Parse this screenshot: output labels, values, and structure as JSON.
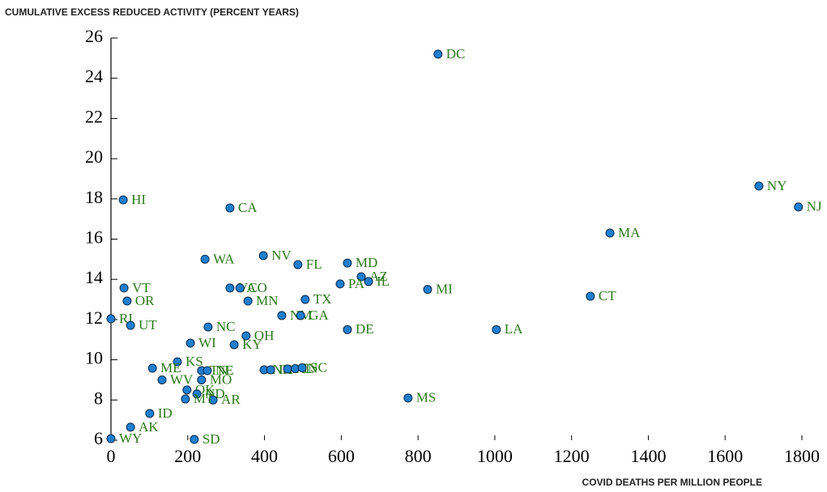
{
  "chart_data": {
    "type": "scatter",
    "title": "CUMULATIVE EXCESS REDUCED ACTIVITY (PERCENT YEARS)",
    "x_label": "COVID DEATHS PER MILLION PEOPLE",
    "labels": [
      "DC",
      "NY",
      "NJ",
      "MA",
      "CT",
      "LA",
      "MI",
      "MS",
      "HI",
      "CA",
      "WA",
      "NV",
      "FL",
      "MD",
      "AZ",
      "IL",
      "PA",
      "TX",
      "VA",
      "CO",
      "MN",
      "NM",
      "NC",
      "GA",
      "DE",
      "OH",
      "KY",
      "WI",
      "VT",
      "OR",
      "RI",
      "UT",
      "KS",
      "ME",
      "TN",
      "NE",
      "NH",
      "IA",
      "AL",
      "IN",
      "SC",
      "WV",
      "MO",
      "OK",
      "ND",
      "AR",
      "ID",
      "MT",
      "AK",
      "WY",
      "SD"
    ],
    "x": [
      852,
      1688,
      1791,
      1300,
      1249,
      1004,
      825,
      774,
      32,
      310,
      245,
      397,
      487,
      616,
      652,
      671,
      597,
      506,
      310,
      336,
      357,
      445,
      253,
      494,
      616,
      352,
      321,
      207,
      34,
      42,
      0,
      51,
      173,
      108,
      236,
      251,
      399,
      416,
      460,
      480,
      498,
      133,
      236,
      198,
      224,
      266,
      101,
      194,
      51,
      0,
      217
    ],
    "values": [
      25.2,
      18.64,
      17.6,
      16.3,
      13.16,
      11.5,
      13.5,
      8.1,
      17.95,
      17.55,
      15.0,
      15.18,
      14.73,
      14.81,
      14.13,
      13.89,
      13.77,
      13.0,
      13.57,
      13.57,
      12.92,
      12.2,
      11.63,
      12.2,
      11.5,
      11.19,
      10.75,
      10.83,
      13.57,
      12.92,
      12.04,
      11.71,
      9.9,
      9.58,
      9.46,
      9.46,
      9.5,
      9.5,
      9.54,
      9.56,
      9.6,
      9.0,
      9.0,
      8.5,
      8.3,
      8.0,
      7.33,
      8.05,
      6.65,
      6.08,
      6.04
    ],
    "xlim": [
      0,
      1800
    ],
    "xticks": [
      0,
      200,
      400,
      600,
      800,
      1000,
      1200,
      1400,
      1600,
      1800
    ],
    "ylim": [
      6,
      26
    ],
    "yticks": [
      6,
      8,
      10,
      12,
      14,
      16,
      18,
      20,
      22,
      24,
      26
    ],
    "color": "#1f7fd0",
    "label_color": "#2a7a1a"
  }
}
